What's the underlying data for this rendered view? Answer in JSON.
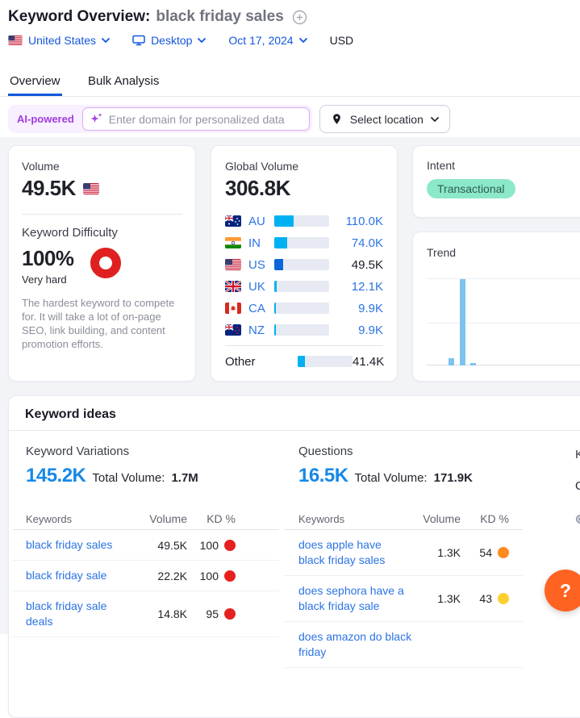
{
  "header": {
    "title": "Keyword Overview:",
    "keyword": "black friday sales",
    "filters": {
      "country": "United States",
      "device": "Desktop",
      "date": "Oct 17, 2024",
      "currency": "USD"
    },
    "tabs": [
      {
        "label": "Overview",
        "active": true
      },
      {
        "label": "Bulk Analysis",
        "active": false
      }
    ]
  },
  "ai_bar": {
    "badge": "AI-powered",
    "input_placeholder": "Enter domain for personalized data",
    "location_button": "Select location"
  },
  "volume_card": {
    "label": "Volume",
    "value": "49.5K",
    "kd_label": "Keyword Difficulty",
    "kd_value": "100%",
    "kd_level": "Very hard",
    "kd_description": "The hardest keyword to compete for. It will take a lot of on-page SEO, link building, and content promotion efforts."
  },
  "global_volume_card": {
    "label": "Global Volume",
    "value": "306.8K",
    "rows": [
      {
        "code": "AU",
        "flag": "au",
        "value": "110.0K",
        "pct": 36,
        "highlight": false
      },
      {
        "code": "IN",
        "flag": "in",
        "value": "74.0K",
        "pct": 24,
        "highlight": false
      },
      {
        "code": "US",
        "flag": "us",
        "value": "49.5K",
        "pct": 16,
        "highlight": true
      },
      {
        "code": "UK",
        "flag": "uk",
        "value": "12.1K",
        "pct": 4,
        "highlight": false
      },
      {
        "code": "CA",
        "flag": "ca",
        "value": "9.9K",
        "pct": 3.2,
        "highlight": false
      },
      {
        "code": "NZ",
        "flag": "nz",
        "value": "9.9K",
        "pct": 3.2,
        "highlight": false
      }
    ],
    "other": {
      "label": "Other",
      "value": "41.4K",
      "pct": 13.5
    }
  },
  "intent_card": {
    "label": "Intent",
    "value": "Transactional"
  },
  "trend_card": {
    "label": "Trend",
    "bars_pct": [
      8,
      100,
      3,
      0,
      0,
      0,
      0,
      0,
      0,
      0,
      0,
      0
    ]
  },
  "keyword_ideas": {
    "title": "Keyword ideas",
    "columns": [
      {
        "name": "Keyword Variations",
        "total": "145.2K",
        "total_volume_label": "Total Volume:",
        "total_volume": "1.7M",
        "headers": [
          "Keywords",
          "Volume",
          "KD %"
        ],
        "rows": [
          {
            "keyword": "black friday sales",
            "volume": "49.5K",
            "kd": "100",
            "kd_color": "red"
          },
          {
            "keyword": "black friday sale",
            "volume": "22.2K",
            "kd": "100",
            "kd_color": "red"
          },
          {
            "keyword": "black friday sale deals",
            "volume": "14.8K",
            "kd": "95",
            "kd_color": "red"
          }
        ]
      },
      {
        "name": "Questions",
        "total": "16.5K",
        "total_volume_label": "Total Volume:",
        "total_volume": "171.9K",
        "headers": [
          "Keywords",
          "Volume",
          "KD %"
        ],
        "rows": [
          {
            "keyword": "does apple have black friday sales",
            "volume": "1.3K",
            "kd": "54",
            "kd_color": "orange"
          },
          {
            "keyword": "does sephora have a black friday sale",
            "volume": "1.3K",
            "kd": "43",
            "kd_color": "yellow"
          },
          {
            "keyword": "does amazon do black friday",
            "volume": "",
            "kd": "",
            "kd_color": ""
          }
        ]
      }
    ],
    "clipped_column": {
      "title_fragment": "K",
      "value_fragment": "G"
    }
  },
  "help_button": {
    "label": "?"
  },
  "icons": {
    "add-keyword": "circle-plus",
    "sparkles": "ai-sparkles",
    "location-pin": "map-pin",
    "chevron-down": "caret",
    "desktop": "monitor",
    "search": "magnifier",
    "help": "question-mark"
  },
  "colors": {
    "nav_blue": "#1356dc",
    "link_blue": "#2c74e4",
    "metric_blue": "#1789e8",
    "bar_cyan": "#00b1f2",
    "bar_us_blue": "#0b67d8",
    "kd_red": "#e52020",
    "kd_orange": "#ff8a1e",
    "kd_yellow": "#ffce31",
    "intent_bg": "#8be8c9",
    "intent_text": "#2f5d54",
    "ai_purple": "#a13be0",
    "help_orange": "#ff6321"
  }
}
